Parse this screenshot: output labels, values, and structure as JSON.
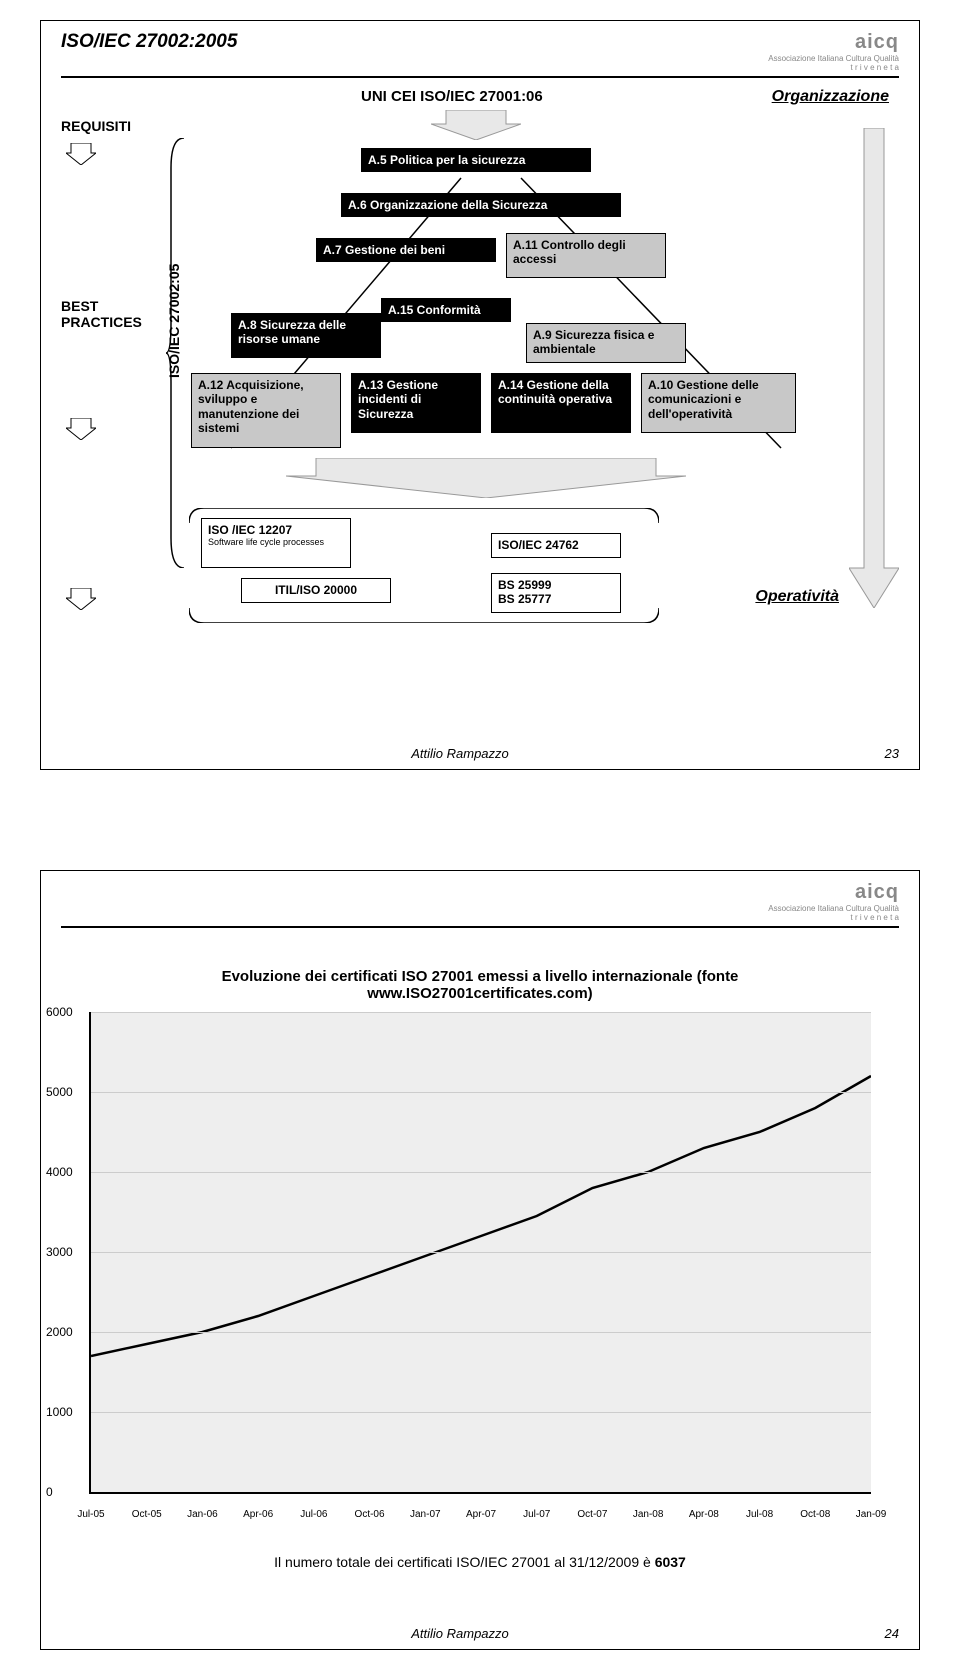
{
  "slide1": {
    "header": "ISO/IEC 27002:2005",
    "top_title": "UNI CEI ISO/IEC 27001:06",
    "org": "Organizzazione",
    "requisiti": "REQUISITI",
    "best_practices": "BEST\nPRACTICES",
    "vert_label": "ISO/IEC 27002:05",
    "boxes": {
      "a5": "A.5 Politica per la sicurezza",
      "a6": "A.6 Organizzazione della Sicurezza",
      "a7": "A.7 Gestione dei beni",
      "a8": "A.8 Sicurezza delle risorse umane",
      "a9": "A.9 Sicurezza fisica e ambientale",
      "a10": "A.10 Gestione delle comunicazioni e dell'operatività",
      "a11": "A.11 Controllo degli accessi",
      "a12": "A.12 Acquisizione, sviluppo e manutenzione dei sistemi",
      "a13": "A.13 Gestione incidenti di Sicurezza",
      "a14": "A.14 Gestione della continuità operativa",
      "a15": "A.15 Conformità"
    },
    "standards": {
      "iso12207": "ISO /IEC 12207",
      "iso12207_sub": "Software life cycle processes",
      "itil": "ITIL/ISO 20000",
      "iso24762": "ISO/IEC 24762",
      "bs": "BS 25999\nBS 25777"
    },
    "operativita": "Operatività",
    "footer_author": "Attilio Rampazzo",
    "footer_num": "23",
    "colors": {
      "black": "#000000",
      "grey": "#c8c8c8",
      "white": "#ffffff"
    }
  },
  "slide2": {
    "title": "Evoluzione dei certificati ISO 27001 emessi a livello internazionale (fonte www.ISO27001certificates.com)",
    "caption_prefix": "Il numero totale dei certificati ISO/IEC  27001 al 31/12/2009 è ",
    "caption_value": "6037",
    "footer_author": "Attilio Rampazzo",
    "footer_num": "24",
    "chart": {
      "type": "line",
      "ylim": [
        0,
        6000
      ],
      "ytick_step": 1000,
      "yticks": [
        0,
        1000,
        2000,
        3000,
        4000,
        5000,
        6000
      ],
      "xlabels": [
        "Jul-05",
        "Oct-05",
        "Jan-06",
        "Apr-06",
        "Jul-06",
        "Oct-06",
        "Jan-07",
        "Apr-07",
        "Jul-07",
        "Oct-07",
        "Jan-08",
        "Apr-08",
        "Jul-08",
        "Oct-08",
        "Jan-09"
      ],
      "values": [
        1700,
        1850,
        2000,
        2200,
        2450,
        2700,
        2950,
        3200,
        3450,
        3800,
        4000,
        4300,
        4500,
        4800,
        5200
      ],
      "line_color": "#000000",
      "line_width": 2.5,
      "background_color": "#eeeeee",
      "grid_color": "#cccccc",
      "label_fontsize": 12
    }
  },
  "logo": {
    "name": "aicq",
    "sub1": "Associazione Italiana Cultura Qualità",
    "sub2": "t r i v e n e t a"
  }
}
